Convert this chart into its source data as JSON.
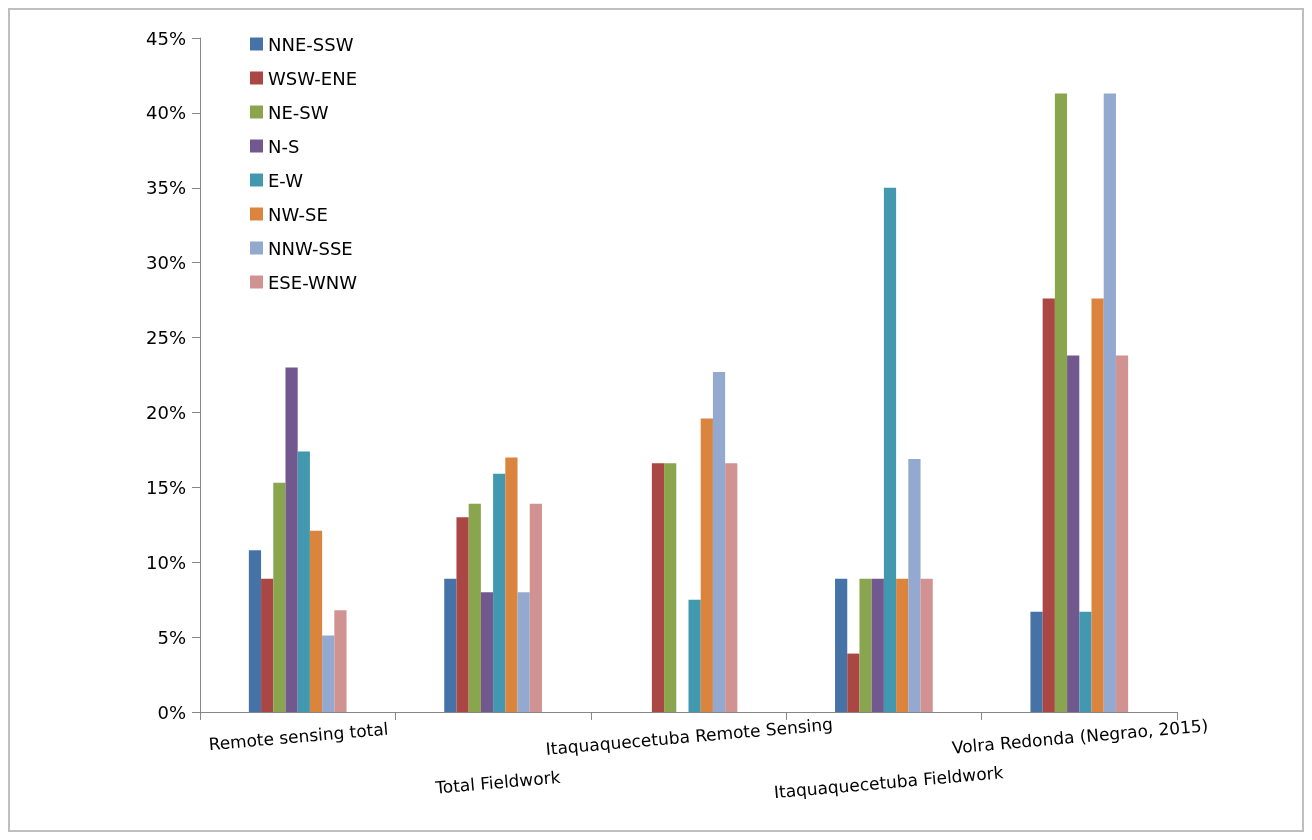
{
  "chart_data": {
    "type": "bar",
    "categories": [
      "Remote sensing total",
      "Total Fieldwork",
      "Itaquaquecetuba Remote Sensing",
      "Itaquaquecetuba Fieldwork",
      "Volra Redonda (Negrao, 2015)"
    ],
    "series": [
      {
        "name": "NNE-SSW",
        "color": "#4572a7",
        "values": [
          10.8,
          8.9,
          null,
          8.9,
          6.7
        ]
      },
      {
        "name": "WSW-ENE",
        "color": "#aa4643",
        "values": [
          8.9,
          13.0,
          16.6,
          3.9,
          27.6
        ]
      },
      {
        "name": "NE-SW",
        "color": "#89a54e",
        "values": [
          15.3,
          13.9,
          16.6,
          8.9,
          41.3
        ]
      },
      {
        "name": "N-S",
        "color": "#71588f",
        "values": [
          23.0,
          8.0,
          null,
          8.9,
          23.8
        ]
      },
      {
        "name": "E-W",
        "color": "#4198af",
        "values": [
          17.4,
          15.9,
          7.5,
          35.0,
          6.7
        ]
      },
      {
        "name": "NW-SE",
        "color": "#db843d",
        "values": [
          12.1,
          17.0,
          19.6,
          8.9,
          27.6
        ]
      },
      {
        "name": "NNW-SSE",
        "color": "#93a9cf",
        "values": [
          5.1,
          8.0,
          22.7,
          16.9,
          41.3
        ]
      },
      {
        "name": "ESE-WNW",
        "color": "#d19392",
        "values": [
          6.8,
          13.9,
          16.6,
          8.9,
          23.8
        ]
      }
    ],
    "ylim": [
      0,
      45
    ],
    "yticks": [
      {
        "value": 0,
        "label": "0%"
      },
      {
        "value": 5,
        "label": "5%"
      },
      {
        "value": 10,
        "label": "10%"
      },
      {
        "value": 15,
        "label": "15%"
      },
      {
        "value": 20,
        "label": "20%"
      },
      {
        "value": 25,
        "label": "25%"
      },
      {
        "value": 30,
        "label": "30%"
      },
      {
        "value": 35,
        "label": "35%"
      },
      {
        "value": 40,
        "label": "40%"
      },
      {
        "value": 45,
        "label": "45%"
      }
    ],
    "grid": false,
    "legend": "top left"
  }
}
